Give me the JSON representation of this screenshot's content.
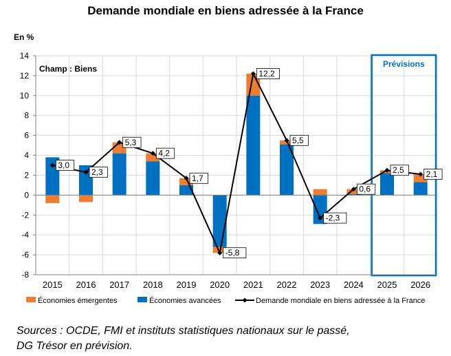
{
  "title": "Demande mondiale en biens adressée à la France",
  "chart_data": {
    "type": "bar",
    "stacked": true,
    "title": "Demande mondiale en biens adressée à la France",
    "unit_label": "En %",
    "annotation": "Champ : Biens",
    "forecast_label": "Prévisions",
    "forecast_categories": [
      "2025",
      "2026"
    ],
    "categories": [
      "2015",
      "2016",
      "2017",
      "2018",
      "2019",
      "2020",
      "2021",
      "2022",
      "2023",
      "2024",
      "2025",
      "2026"
    ],
    "ylim": [
      -8,
      14
    ],
    "yticks": [
      "14",
      "12",
      "10",
      "8",
      "6",
      "4",
      "2",
      "0",
      "-2",
      "-4",
      "-6",
      "-8"
    ],
    "grid": true,
    "legend_position": "bottom",
    "series": [
      {
        "name": "Économies émergentes",
        "kind": "bar",
        "color": "#ED7D31",
        "values": [
          -0.8,
          -0.7,
          1.1,
          0.8,
          0.7,
          -0.6,
          2.2,
          0.4,
          0.6,
          0.5,
          0.3,
          0.8
        ]
      },
      {
        "name": "Économies avancées",
        "kind": "bar",
        "color": "#0070C0",
        "values": [
          3.8,
          3.0,
          4.2,
          3.4,
          1.0,
          -5.2,
          10.0,
          5.1,
          -2.9,
          0.1,
          2.2,
          1.3
        ]
      },
      {
        "name": "Demande mondiale en biens adressée à la France",
        "kind": "line",
        "color": "#000000",
        "values": [
          3.0,
          2.3,
          5.3,
          4.2,
          1.7,
          -5.8,
          12.2,
          5.5,
          -2.3,
          0.6,
          2.5,
          2.1
        ],
        "labels": [
          "3,0",
          "2,3",
          "5,3",
          "4,2",
          "1,7",
          "-5,8",
          "12,2",
          "5,5",
          "-2,3",
          "0,6",
          "2,5",
          "2,1"
        ]
      }
    ]
  },
  "sources": {
    "line1": "Sources : OCDE, FMI et instituts statistiques nationaux sur le passé,",
    "line2": "DG Trésor en prévision."
  }
}
